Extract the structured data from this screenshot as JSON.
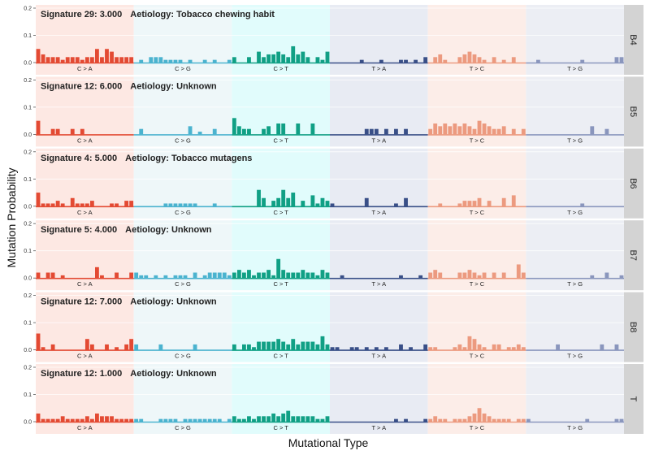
{
  "figure": {
    "y_axis_title": "Mutation Probability",
    "x_axis_title": "Mutational Type"
  },
  "chart_data": {
    "type": "bar",
    "title": "",
    "xlabel": "Mutational Type",
    "ylabel": "Mutation Probability",
    "ylim": [
      0,
      0.2
    ],
    "yticks": [
      "0.0",
      "0.1",
      "0.2"
    ],
    "grid": true,
    "legend": "none",
    "categories": [
      "C > A",
      "C > G",
      "C > T",
      "T > A",
      "T > C",
      "T > G"
    ],
    "colors": {
      "bars": [
        "#e34a33",
        "#4bb3cf",
        "#10a085",
        "#394f87",
        "#ec9a7f",
        "#8a96bd"
      ],
      "backgrounds": [
        "#fde8e3",
        "#eef7f9",
        "#e1fcfc",
        "#e8ebf3",
        "#fcede8",
        "#eceef4"
      ],
      "strip": "#d3d3d3"
    },
    "panels": [
      {
        "strip": "B4",
        "signature": "Signature 29: 3.000",
        "aetiology": "Aetiology: Tobacco chewing habit",
        "values": [
          [
            0.05,
            0.03,
            0.02,
            0.02,
            0.02,
            0.01,
            0.02,
            0.02,
            0.02,
            0.01,
            0.02,
            0.02,
            0.05,
            0.02,
            0.05,
            0.04,
            0.02,
            0.02,
            0.02,
            0.02
          ],
          [
            0,
            0.01,
            0,
            0.02,
            0.02,
            0.02,
            0.01,
            0.01,
            0.01,
            0.01,
            0,
            0.01,
            0,
            0,
            0.01,
            0,
            0.01,
            0,
            0,
            0.01
          ],
          [
            0.02,
            0,
            0,
            0.02,
            0,
            0.04,
            0.02,
            0.03,
            0.03,
            0.04,
            0.03,
            0.02,
            0.06,
            0.03,
            0.04,
            0.02,
            0,
            0.02,
            0.01,
            0.04
          ],
          [
            0,
            0,
            0,
            0,
            0,
            0,
            0.01,
            0,
            0,
            0,
            0.01,
            0,
            0,
            0,
            0.01,
            0.01,
            0,
            0.01,
            0,
            0.02
          ],
          [
            0,
            0.02,
            0.03,
            0.01,
            0,
            0,
            0.02,
            0.03,
            0.04,
            0.03,
            0.02,
            0.01,
            0,
            0.02,
            0,
            0.01,
            0,
            0.02,
            0,
            0
          ],
          [
            0,
            0,
            0.01,
            0,
            0,
            0,
            0,
            0,
            0,
            0,
            0,
            0.01,
            0,
            0,
            0,
            0,
            0,
            0,
            0.02,
            0.02
          ]
        ]
      },
      {
        "strip": "B5",
        "signature": "Signature 12: 6.000",
        "aetiology": "Aetiology: Unknown",
        "values": [
          [
            0.05,
            0,
            0,
            0.02,
            0.02,
            0,
            0,
            0.02,
            0,
            0.02,
            0,
            0,
            0,
            0,
            0,
            0,
            0,
            0,
            0,
            0
          ],
          [
            0,
            0.02,
            0,
            0,
            0,
            0,
            0,
            0,
            0,
            0,
            0,
            0.03,
            0,
            0.01,
            0,
            0,
            0.02,
            0,
            0,
            0
          ],
          [
            0.06,
            0.03,
            0.02,
            0.02,
            0,
            0,
            0.02,
            0.03,
            0,
            0.04,
            0.04,
            0,
            0,
            0.04,
            0,
            0,
            0.04,
            0,
            0,
            0
          ],
          [
            0,
            0,
            0,
            0,
            0,
            0,
            0,
            0.02,
            0.02,
            0.02,
            0,
            0.02,
            0,
            0.02,
            0,
            0.02,
            0,
            0,
            0,
            0
          ],
          [
            0.02,
            0.04,
            0.03,
            0.04,
            0.03,
            0.04,
            0.03,
            0.04,
            0.03,
            0.02,
            0.05,
            0.04,
            0.03,
            0.02,
            0.02,
            0.03,
            0,
            0.02,
            0,
            0.02
          ],
          [
            0,
            0,
            0,
            0,
            0,
            0,
            0,
            0,
            0,
            0,
            0,
            0,
            0,
            0.03,
            0,
            0,
            0.02,
            0,
            0,
            0
          ]
        ]
      },
      {
        "strip": "B6",
        "signature": "Signature 4: 5.000",
        "aetiology": "Aetiology: Tobacco mutagens",
        "values": [
          [
            0.05,
            0.01,
            0.01,
            0.01,
            0.02,
            0.01,
            0,
            0.03,
            0.01,
            0.01,
            0.01,
            0.02,
            0,
            0,
            0,
            0.01,
            0.01,
            0,
            0.02,
            0.02
          ],
          [
            0,
            0,
            0,
            0,
            0,
            0,
            0.01,
            0.01,
            0.01,
            0.01,
            0.01,
            0.01,
            0.01,
            0,
            0,
            0,
            0.01,
            0,
            0,
            0
          ],
          [
            0,
            0,
            0,
            0,
            0,
            0.06,
            0.03,
            0,
            0.02,
            0.03,
            0.06,
            0.03,
            0.05,
            0,
            0.02,
            0,
            0.04,
            0.01,
            0.03,
            0.02
          ],
          [
            0.01,
            0,
            0,
            0,
            0,
            0,
            0,
            0.03,
            0,
            0,
            0,
            0,
            0,
            0.01,
            0,
            0.03,
            0,
            0,
            0,
            0
          ],
          [
            0,
            0,
            0.01,
            0,
            0,
            0,
            0.01,
            0.02,
            0.02,
            0.02,
            0.03,
            0,
            0.02,
            0,
            0,
            0.03,
            0,
            0.04,
            0,
            0
          ],
          [
            0,
            0,
            0,
            0,
            0,
            0,
            0,
            0,
            0,
            0,
            0,
            0.01,
            0,
            0,
            0,
            0,
            0,
            0,
            0,
            0
          ]
        ]
      },
      {
        "strip": "B7",
        "signature": "Signature 5: 4.000",
        "aetiology": "Aetiology: Unknown",
        "values": [
          [
            0.02,
            0,
            0.02,
            0.02,
            0,
            0.01,
            0,
            0,
            0,
            0,
            0,
            0,
            0.04,
            0.01,
            0,
            0,
            0.02,
            0,
            0,
            0.02
          ],
          [
            0.02,
            0.01,
            0.01,
            0,
            0.01,
            0,
            0.01,
            0,
            0.01,
            0.01,
            0.01,
            0,
            0.02,
            0,
            0.01,
            0.02,
            0.02,
            0.02,
            0.02,
            0.01
          ],
          [
            0.02,
            0.03,
            0.02,
            0.03,
            0.01,
            0.02,
            0.02,
            0.03,
            0.01,
            0.07,
            0.03,
            0.02,
            0.02,
            0.02,
            0.03,
            0.02,
            0.02,
            0.01,
            0.03,
            0.02
          ],
          [
            0,
            0,
            0.01,
            0,
            0,
            0,
            0,
            0,
            0,
            0,
            0,
            0,
            0,
            0,
            0.01,
            0,
            0,
            0,
            0.01,
            0
          ],
          [
            0.02,
            0.03,
            0.02,
            0,
            0,
            0,
            0.02,
            0.02,
            0.03,
            0.02,
            0.01,
            0.02,
            0,
            0.02,
            0,
            0.02,
            0,
            0,
            0.05,
            0.02
          ],
          [
            0,
            0,
            0,
            0,
            0,
            0,
            0,
            0,
            0,
            0,
            0,
            0,
            0,
            0.01,
            0,
            0,
            0.02,
            0,
            0,
            0.01
          ]
        ]
      },
      {
        "strip": "B8",
        "signature": "Signature 12: 7.000",
        "aetiology": "Aetiology: Unknown",
        "values": [
          [
            0.06,
            0.01,
            0,
            0.02,
            0,
            0,
            0,
            0,
            0,
            0,
            0.04,
            0.02,
            0,
            0,
            0.02,
            0,
            0.01,
            0,
            0.02,
            0.04
          ],
          [
            0.02,
            0,
            0,
            0,
            0,
            0.02,
            0,
            0,
            0,
            0,
            0,
            0,
            0.02,
            0,
            0,
            0,
            0,
            0,
            0,
            0
          ],
          [
            0.02,
            0,
            0.02,
            0.02,
            0.01,
            0.03,
            0.03,
            0.03,
            0.03,
            0.04,
            0.03,
            0.02,
            0.04,
            0.02,
            0.03,
            0.03,
            0.03,
            0.02,
            0.05,
            0.02
          ],
          [
            0.01,
            0.01,
            0,
            0,
            0.01,
            0.01,
            0,
            0.01,
            0,
            0.01,
            0,
            0.01,
            0,
            0,
            0.02,
            0,
            0.01,
            0,
            0,
            0.02
          ],
          [
            0.01,
            0.01,
            0,
            0,
            0,
            0.01,
            0.02,
            0.01,
            0.05,
            0.04,
            0.02,
            0.01,
            0,
            0.02,
            0.02,
            0,
            0.01,
            0.01,
            0.02,
            0.01
          ],
          [
            0,
            0,
            0,
            0,
            0,
            0,
            0.02,
            0,
            0,
            0,
            0,
            0,
            0,
            0,
            0,
            0.02,
            0,
            0,
            0.02,
            0
          ]
        ]
      },
      {
        "strip": "T",
        "signature": "Signature 12: 1.000",
        "aetiology": "Aetiology: Unknown",
        "values": [
          [
            0.03,
            0.01,
            0.01,
            0.01,
            0.01,
            0.02,
            0.01,
            0.01,
            0.01,
            0.01,
            0.02,
            0.01,
            0.03,
            0.02,
            0.02,
            0.02,
            0.01,
            0.01,
            0.01,
            0.01
          ],
          [
            0.01,
            0.01,
            0,
            0,
            0,
            0.01,
            0.01,
            0.01,
            0.01,
            0,
            0.01,
            0.01,
            0.01,
            0.01,
            0.01,
            0.01,
            0.01,
            0.01,
            0,
            0.01
          ],
          [
            0.02,
            0.01,
            0.01,
            0.02,
            0.01,
            0.02,
            0.02,
            0.02,
            0.03,
            0.02,
            0.03,
            0.04,
            0.02,
            0.02,
            0.02,
            0.02,
            0.02,
            0.01,
            0.01,
            0.02
          ],
          [
            0,
            0,
            0,
            0,
            0,
            0,
            0,
            0,
            0,
            0,
            0,
            0,
            0,
            0.01,
            0,
            0.01,
            0,
            0,
            0,
            0.01
          ],
          [
            0.01,
            0.02,
            0.01,
            0.01,
            0,
            0.01,
            0.01,
            0.01,
            0.02,
            0.03,
            0.05,
            0.03,
            0.02,
            0.01,
            0.01,
            0.01,
            0.01,
            0,
            0.01,
            0.01
          ],
          [
            0.01,
            0,
            0,
            0,
            0,
            0,
            0,
            0,
            0,
            0,
            0,
            0,
            0.01,
            0,
            0,
            0,
            0,
            0,
            0.01,
            0.01
          ]
        ]
      }
    ]
  }
}
